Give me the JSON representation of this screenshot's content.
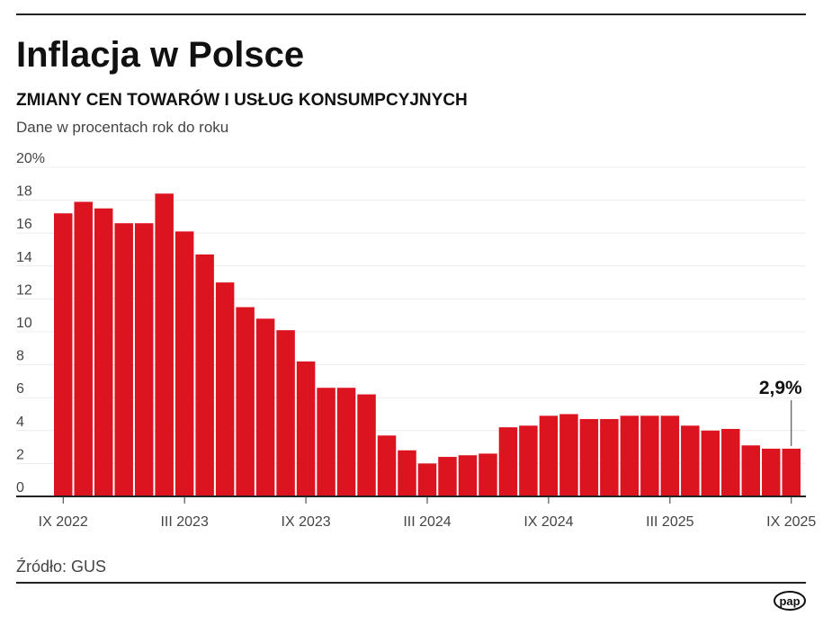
{
  "chart_data": {
    "type": "bar",
    "title": "Inflacja w Polsce",
    "subtitle": "ZMIANY CEN TOWARÓW I USŁUG KONSUMPCYJNYCH",
    "ylabel": "Dane w procentach rok do roku",
    "ylim": [
      0,
      20
    ],
    "yticks": [
      "0",
      "2",
      "4",
      "6",
      "8",
      "10",
      "12",
      "14",
      "16",
      "18",
      "20%"
    ],
    "xticks": [
      {
        "label": "IX 2022",
        "index": 0
      },
      {
        "label": "III 2023",
        "index": 6
      },
      {
        "label": "IX 2023",
        "index": 12
      },
      {
        "label": "III 2024",
        "index": 18
      },
      {
        "label": "IX 2024",
        "index": 24
      },
      {
        "label": "III 2025",
        "index": 30
      },
      {
        "label": "IX 2025",
        "index": 36
      }
    ],
    "categories": [
      "IX 2022",
      "X 2022",
      "XI 2022",
      "XII 2022",
      "I 2023",
      "II 2023",
      "III 2023",
      "IV 2023",
      "V 2023",
      "VI 2023",
      "VII 2023",
      "VIII 2023",
      "IX 2023",
      "X 2023",
      "XI 2023",
      "XII 2023",
      "I 2024",
      "II 2024",
      "III 2024",
      "IV 2024",
      "V 2024",
      "VI 2024",
      "VII 2024",
      "VIII 2024",
      "IX 2024",
      "X 2024",
      "XI 2024",
      "XII 2024",
      "I 2025",
      "II 2025",
      "III 2025",
      "IV 2025",
      "V 2025",
      "VI 2025",
      "VII 2025",
      "VIII 2025",
      "IX 2025"
    ],
    "values": [
      17.2,
      17.9,
      17.5,
      16.6,
      16.6,
      18.4,
      16.1,
      14.7,
      13.0,
      11.5,
      10.8,
      10.1,
      8.2,
      6.6,
      6.6,
      6.2,
      3.7,
      2.8,
      2.0,
      2.4,
      2.5,
      2.6,
      4.2,
      4.3,
      4.9,
      5.0,
      4.7,
      4.7,
      4.9,
      4.9,
      4.9,
      4.3,
      4.0,
      4.1,
      3.1,
      2.9,
      2.9
    ],
    "annotation": "2,9%",
    "grid": true,
    "bar_color": "#dc1420"
  },
  "source": "Źródło: GUS",
  "logo": "pap"
}
